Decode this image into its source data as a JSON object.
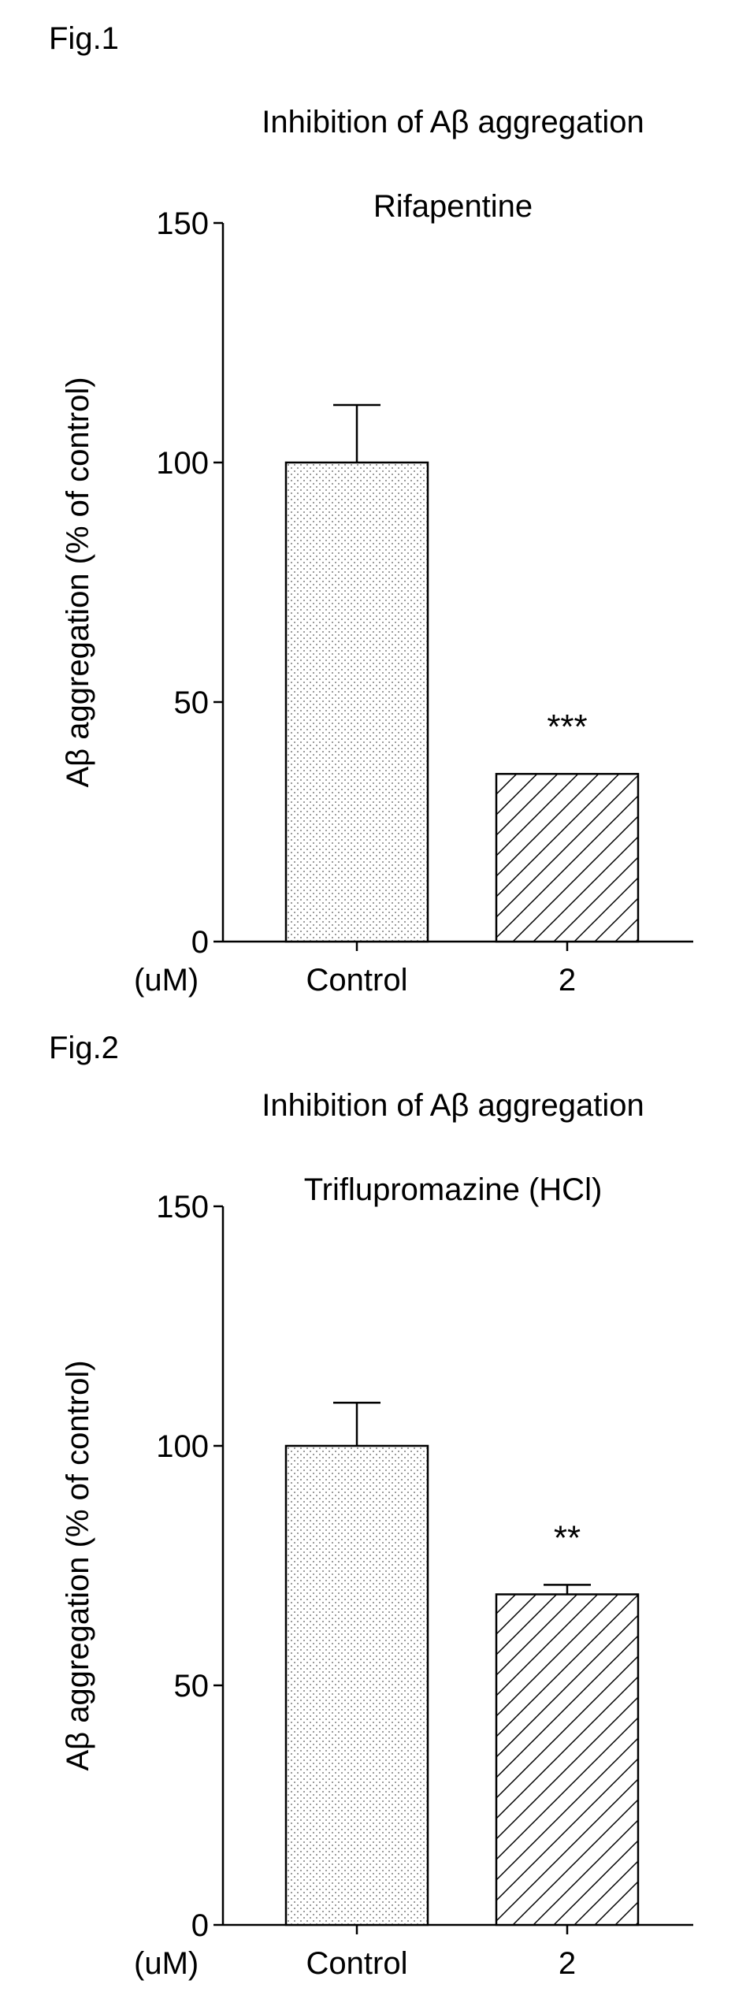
{
  "chart_data": [
    {
      "figure_label": "Fig.1",
      "type": "bar",
      "title": "Inhibition of Aβ aggregation",
      "subtitle": "Rifapentine",
      "ylabel": "Aβ aggregation (% of control)",
      "xunit": "(uM)",
      "categories": [
        "Control",
        "2"
      ],
      "values": [
        100,
        35
      ],
      "errors": [
        12,
        0
      ],
      "significance": [
        "",
        "***"
      ],
      "patterns": [
        "dots",
        "hatch"
      ],
      "ylim": [
        0,
        150
      ],
      "yticks": [
        0,
        50,
        100,
        150
      ],
      "grid": false
    },
    {
      "figure_label": "Fig.2",
      "type": "bar",
      "title": "Inhibition of Aβ aggregation",
      "subtitle": "Triflupromazine (HCl)",
      "ylabel": "Aβ aggregation (% of control)",
      "xunit": "(uM)",
      "categories": [
        "Control",
        "2"
      ],
      "values": [
        100,
        69
      ],
      "errors": [
        9,
        2
      ],
      "significance": [
        "",
        "**"
      ],
      "patterns": [
        "dots",
        "hatch"
      ],
      "ylim": [
        0,
        150
      ],
      "yticks": [
        0,
        50,
        100,
        150
      ],
      "grid": false
    }
  ]
}
